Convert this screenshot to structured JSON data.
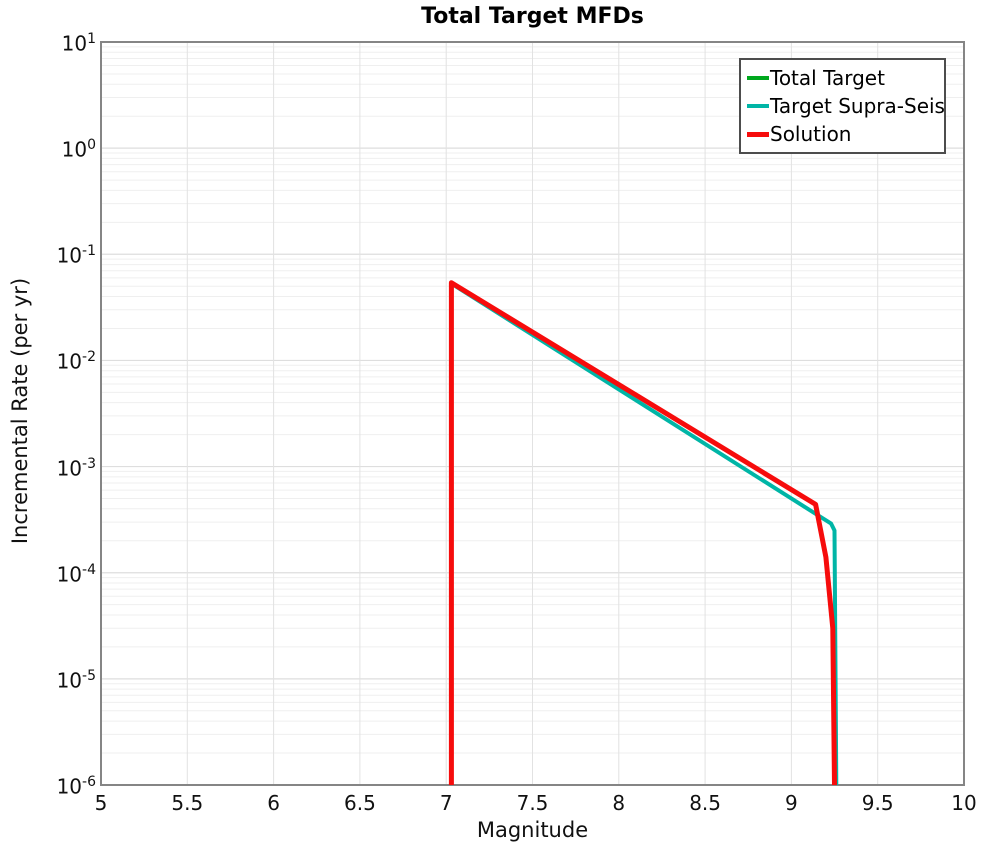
{
  "chart_data": {
    "type": "line",
    "title": "Total Target MFDs",
    "xlabel": "Magnitude",
    "ylabel": "Incremental Rate (per yr)",
    "xlim": [
      5,
      10
    ],
    "ylim": [
      1e-06,
      10
    ],
    "yscale": "log",
    "x_ticks": [
      5,
      5.5,
      6,
      6.5,
      7,
      7.5,
      8,
      8.5,
      9,
      9.5,
      10
    ],
    "y_tick_exponents": [
      1,
      0,
      -1,
      -2,
      -3,
      -4,
      -5,
      -6
    ],
    "grid": true,
    "legend_position": "top-right",
    "colors": {
      "grid_minor": "#efefef",
      "grid_major": "#dedede",
      "grid_vertical": "#e2e2e2",
      "frame": "#858585"
    },
    "series": [
      {
        "name": "Total Target",
        "color": "#00a81e",
        "width": 4,
        "points": [
          [
            7.03,
            1e-06
          ],
          [
            7.03,
            0.054
          ],
          [
            9.14,
            0.00044
          ],
          [
            9.2,
            0.00014
          ],
          [
            9.24,
            3e-05
          ],
          [
            9.25,
            1e-06
          ]
        ]
      },
      {
        "name": "Target Supra-Seis",
        "color": "#00b5a6",
        "width": 4,
        "points": [
          [
            7.03,
            1e-06
          ],
          [
            7.03,
            0.053
          ],
          [
            9.23,
            0.00029
          ],
          [
            9.25,
            0.00025
          ],
          [
            9.26,
            1e-06
          ]
        ]
      },
      {
        "name": "Solution",
        "color": "#f60c0c",
        "width": 5,
        "points": [
          [
            7.03,
            1e-06
          ],
          [
            7.03,
            0.054
          ],
          [
            9.14,
            0.00044
          ],
          [
            9.2,
            0.00014
          ],
          [
            9.24,
            3e-05
          ],
          [
            9.25,
            1e-06
          ]
        ]
      }
    ]
  }
}
